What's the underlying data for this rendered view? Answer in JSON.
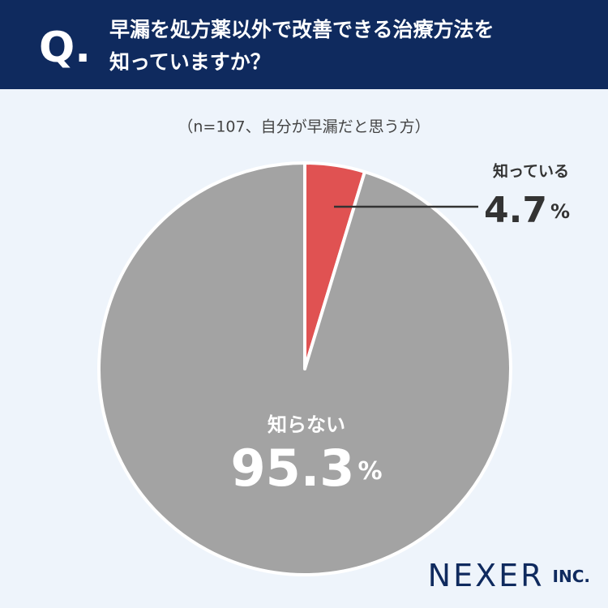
{
  "header": {
    "mark": "Q.",
    "title_lines": [
      "早漏を処方薬以外で改善できる治療方法を",
      "知っていますか？"
    ]
  },
  "chart_data": {
    "type": "pie",
    "subtitle": "（n=107、自分が早漏だと思う方）",
    "categories": [
      "知っている",
      "知らない"
    ],
    "values": [
      4.7,
      95.3
    ],
    "unit": "%",
    "colors": [
      "#e05252",
      "#a3a3a3"
    ]
  },
  "logo": {
    "name": "NEXER",
    "suffix": "INC."
  }
}
